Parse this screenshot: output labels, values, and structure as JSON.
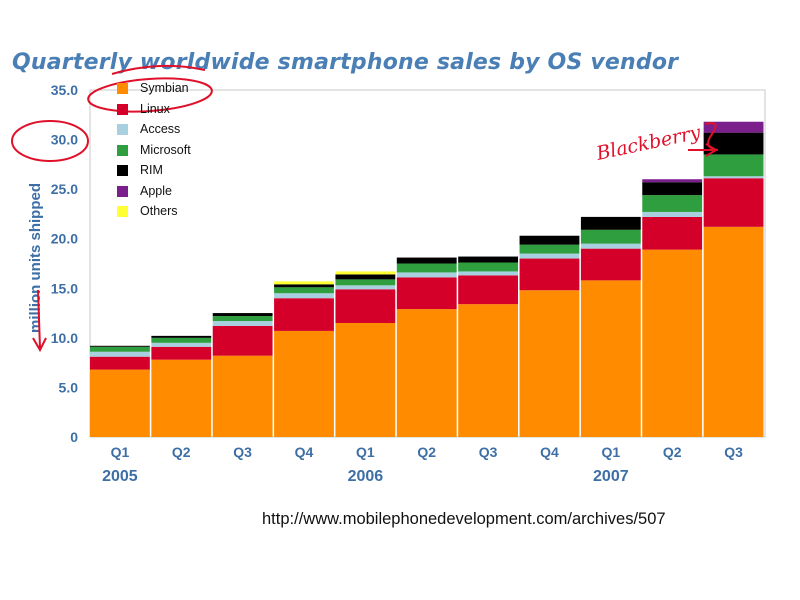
{
  "chart_data": {
    "type": "bar",
    "stacked": true,
    "title": "Quarterly worldwide smartphone sales by OS vendor",
    "ylabel": "million units shipped",
    "xlabel": "",
    "ylim": [
      0,
      35
    ],
    "yticks": [
      "0",
      "5.0",
      "10.0",
      "15.0",
      "20.0",
      "25.0",
      "30.0",
      "35.0"
    ],
    "categories": [
      "Q1",
      "Q2",
      "Q3",
      "Q4",
      "Q1",
      "Q2",
      "Q3",
      "Q4",
      "Q1",
      "Q2",
      "Q3"
    ],
    "year_groups": [
      {
        "label": "2005",
        "start": 0,
        "end": 3
      },
      {
        "label": "2006",
        "start": 4,
        "end": 7
      },
      {
        "label": "2007",
        "start": 8,
        "end": 10
      }
    ],
    "grid": false,
    "legend_position": "top-left",
    "series": [
      {
        "name": "Symbian",
        "color": "#ff8c00",
        "values": [
          6.8,
          7.8,
          8.2,
          10.7,
          11.5,
          12.9,
          13.4,
          14.8,
          15.8,
          18.9,
          21.2
        ]
      },
      {
        "name": "Linux",
        "color": "#d4002a",
        "values": [
          1.3,
          1.3,
          3.0,
          3.3,
          3.4,
          3.2,
          2.9,
          3.2,
          3.2,
          3.3,
          4.9
        ]
      },
      {
        "name": "Access",
        "color": "#a8d0e0",
        "values": [
          0.5,
          0.4,
          0.5,
          0.5,
          0.4,
          0.5,
          0.4,
          0.5,
          0.5,
          0.5,
          0.2
        ]
      },
      {
        "name": "Microsoft",
        "color": "#2e9e3e",
        "values": [
          0.5,
          0.5,
          0.5,
          0.6,
          0.6,
          0.9,
          0.9,
          0.9,
          1.4,
          1.7,
          2.2
        ]
      },
      {
        "name": "RIM",
        "color": "#000000",
        "values": [
          0.1,
          0.2,
          0.3,
          0.3,
          0.5,
          0.6,
          0.6,
          0.9,
          1.3,
          1.3,
          2.2
        ]
      },
      {
        "name": "Apple",
        "color": "#7b1f8c",
        "values": [
          0,
          0,
          0,
          0,
          0,
          0,
          0,
          0,
          0,
          0.3,
          1.1
        ]
      },
      {
        "name": "Others",
        "color": "#ffff33",
        "values": [
          0,
          0,
          0,
          0.3,
          0.3,
          0,
          0,
          0,
          0,
          0,
          0
        ]
      }
    ]
  },
  "footer": {
    "source_url": "http://www.mobilephonedevelopment.com/archives/507"
  },
  "annotations": {
    "handwritten_note": "Blackberry"
  }
}
